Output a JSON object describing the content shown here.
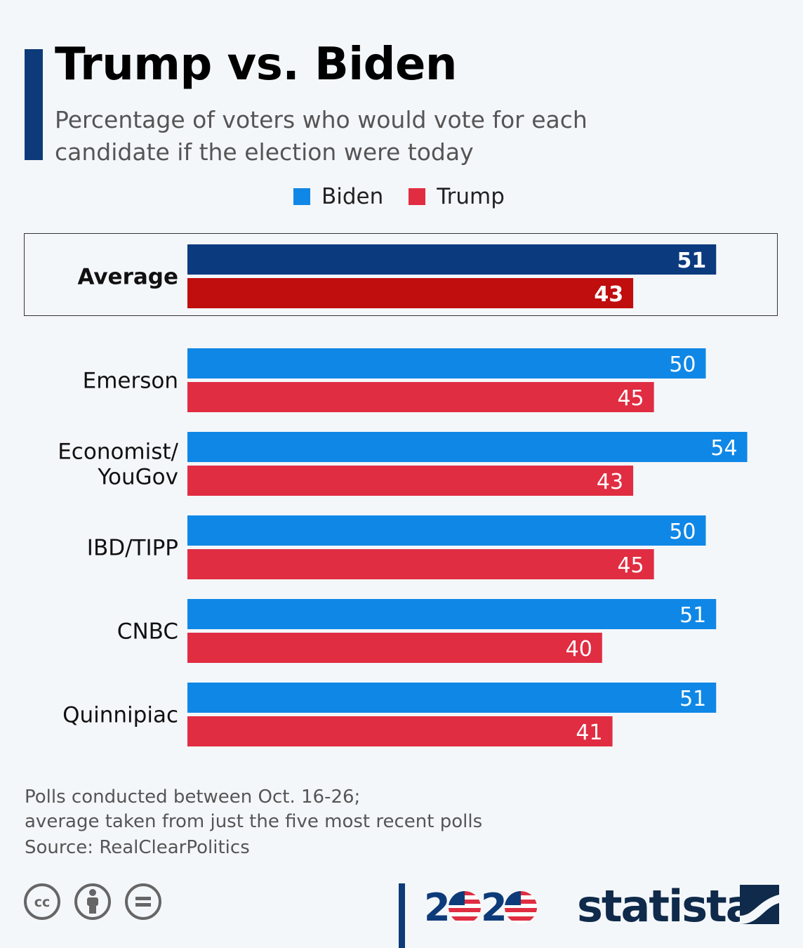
{
  "header": {
    "title": "Trump vs. Biden",
    "subtitle": "Percentage of voters who would vote for each candidate if the election were today"
  },
  "colors": {
    "biden": "#0f87e6",
    "trump": "#e02d42",
    "biden_avg": "#0b3a7e",
    "trump_avg": "#c00d0d",
    "accent": "#0d3b7a"
  },
  "legend": [
    {
      "label": "Biden",
      "color": "#0f87e6"
    },
    {
      "label": "Trump",
      "color": "#e02d42"
    }
  ],
  "chart_data": {
    "type": "bar",
    "orientation": "horizontal",
    "title": "Trump vs. Biden",
    "categories": [
      "Average",
      "Emerson",
      "Economist/\nYouGov",
      "IBD/TIPP",
      "CNBC",
      "Quinnipiac"
    ],
    "series": [
      {
        "name": "Biden",
        "values": [
          51,
          50,
          54,
          50,
          51,
          51
        ]
      },
      {
        "name": "Trump",
        "values": [
          43,
          45,
          43,
          45,
          40,
          41
        ]
      }
    ],
    "highlighted_category": "Average",
    "xlim": [
      0,
      54
    ]
  },
  "footer": {
    "note_line1": "Polls conducted between Oct. 16-26;",
    "note_line2": "average taken from just the five most recent polls",
    "source": "Source: RealClearPolitics",
    "logo_2020": "2020",
    "brand": "statista"
  }
}
